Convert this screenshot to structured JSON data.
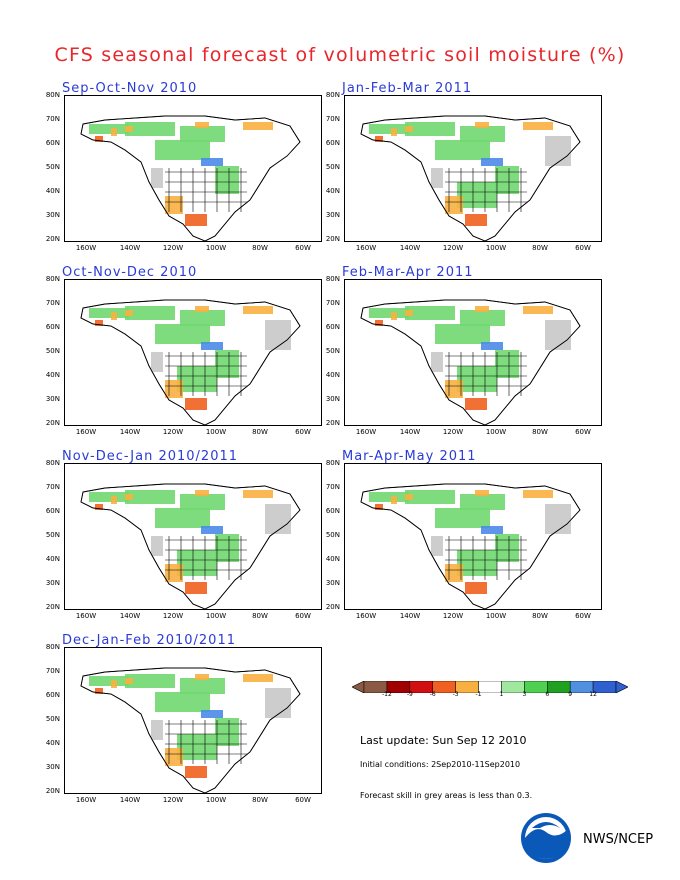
{
  "title": "CFS seasonal forecast of volumetric soil moisture (%)",
  "panels": [
    {
      "label": "Sep-Oct-Nov 2010"
    },
    {
      "label": "Jan-Feb-Mar 2011"
    },
    {
      "label": "Oct-Nov-Dec 2010"
    },
    {
      "label": "Feb-Mar-Apr 2011"
    },
    {
      "label": "Nov-Dec-Jan 2010/2011"
    },
    {
      "label": "Mar-Apr-May 2011"
    },
    {
      "label": "Dec-Jan-Feb 2010/2011"
    }
  ],
  "axes": {
    "lat_labels": [
      "80N",
      "70N",
      "60N",
      "50N",
      "40N",
      "30N",
      "20N"
    ],
    "lon_labels": [
      "160W",
      "140W",
      "120W",
      "100W",
      "80W",
      "60W"
    ]
  },
  "colorbar": {
    "labels": [
      "-12",
      "-9",
      "-6",
      "-3",
      "-1",
      "1",
      "3",
      "6",
      "9",
      "12"
    ],
    "colors": [
      "#8a5a44",
      "#a00000",
      "#d01010",
      "#f06020",
      "#f8b040",
      "#ffffff",
      "#a0e8a0",
      "#50d050",
      "#20a020",
      "#5090e0",
      "#3060d0"
    ]
  },
  "notes": {
    "last_update": "Last update: Sun Sep 12 2010",
    "initial_conditions": "Initial conditions: 2Sep2010-11Sep2010",
    "skill": "Forecast skill in grey areas is less than 0.3."
  },
  "logo_text": "NWS/NCEP",
  "colors": {
    "title": "#e8262b",
    "panel_title": "#2a3bd6",
    "wet": "#70d870",
    "dry": "#f8b040",
    "very_dry": "#f06020",
    "grey": "#c8c8c8",
    "blue": "#4a8ae8"
  }
}
